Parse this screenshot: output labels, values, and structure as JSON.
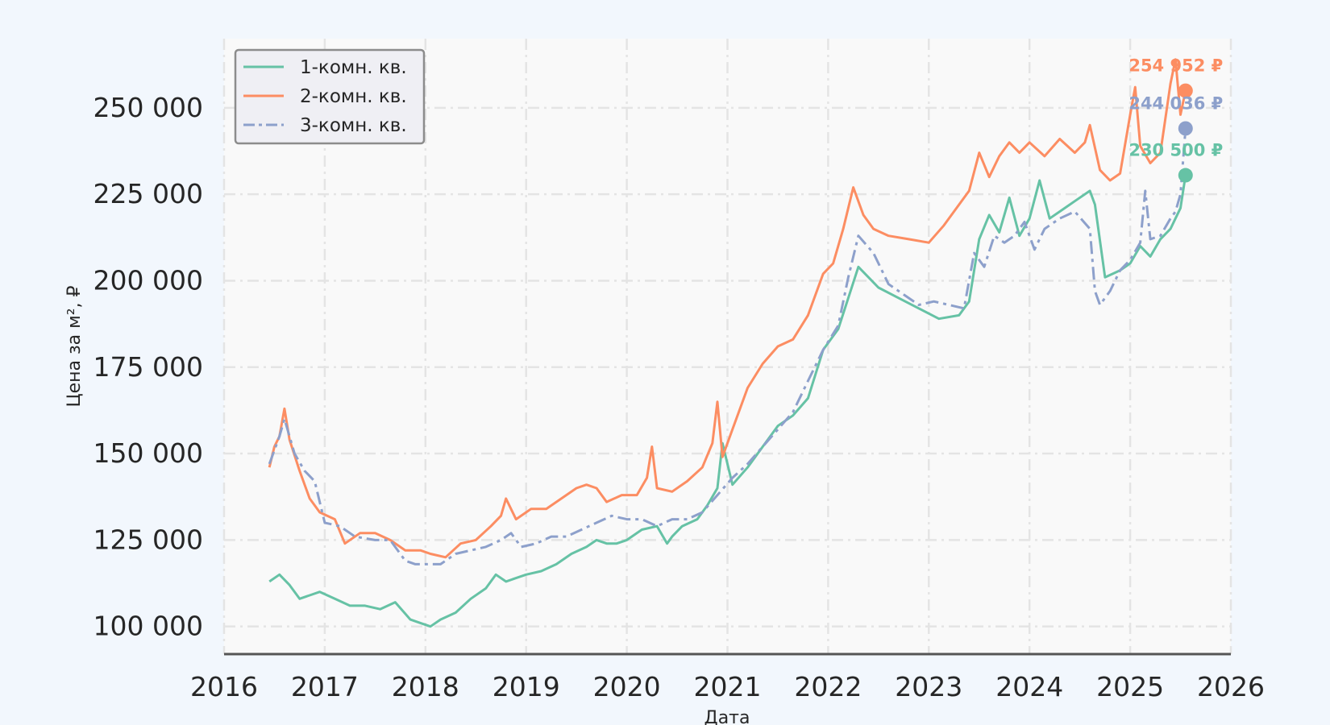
{
  "chart_data": {
    "type": "line",
    "title": "",
    "xlabel": "Дата",
    "ylabel": "Цена за м², ₽",
    "xlim": [
      2016,
      2026
    ],
    "ylim": [
      92000,
      270000
    ],
    "x_ticks": [
      2016,
      2017,
      2018,
      2019,
      2020,
      2021,
      2022,
      2023,
      2024,
      2025,
      2026
    ],
    "x_tick_labels": [
      "2016",
      "2017",
      "2018",
      "2019",
      "2020",
      "2021",
      "2022",
      "2023",
      "2024",
      "2025",
      "2026"
    ],
    "y_ticks": [
      100000,
      125000,
      150000,
      175000,
      200000,
      225000,
      250000
    ],
    "y_tick_labels": [
      "100 000",
      "125 000",
      "150 000",
      "175 000",
      "200 000",
      "225 000",
      "250 000"
    ],
    "grid": true,
    "legend_position": "top-left",
    "series": [
      {
        "name": "1-комн. кв.",
        "color": "#66c2a5",
        "dash": "solid",
        "end_label": "230 500 ₽",
        "x": [
          2016.45,
          2016.55,
          2016.65,
          2016.75,
          2016.85,
          2016.95,
          2017.1,
          2017.25,
          2017.4,
          2017.55,
          2017.7,
          2017.85,
          2017.95,
          2018.05,
          2018.15,
          2018.3,
          2018.45,
          2018.6,
          2018.7,
          2018.8,
          2018.9,
          2019.0,
          2019.15,
          2019.3,
          2019.45,
          2019.6,
          2019.7,
          2019.8,
          2019.9,
          2020.0,
          2020.15,
          2020.3,
          2020.4,
          2020.45,
          2020.55,
          2020.7,
          2020.8,
          2020.9,
          2020.95,
          2021.05,
          2021.2,
          2021.35,
          2021.5,
          2021.65,
          2021.8,
          2021.95,
          2022.1,
          2022.2,
          2022.3,
          2022.4,
          2022.5,
          2022.7,
          2022.9,
          2023.1,
          2023.3,
          2023.4,
          2023.5,
          2023.6,
          2023.7,
          2023.8,
          2023.9,
          2024.0,
          2024.1,
          2024.2,
          2024.3,
          2024.45,
          2024.6,
          2024.65,
          2024.75,
          2024.9,
          2025.0,
          2025.1,
          2025.2,
          2025.3,
          2025.4,
          2025.45,
          2025.5,
          2025.55
        ],
        "y": [
          113000,
          115000,
          112000,
          108000,
          109000,
          110000,
          108000,
          106000,
          106000,
          105000,
          107000,
          102000,
          101000,
          100000,
          102000,
          104000,
          108000,
          111000,
          115000,
          113000,
          114000,
          115000,
          116000,
          118000,
          121000,
          123000,
          125000,
          124000,
          124000,
          125000,
          128000,
          129000,
          124000,
          126000,
          129000,
          131000,
          135000,
          140000,
          153000,
          141000,
          146000,
          152000,
          158000,
          161000,
          166000,
          180000,
          186000,
          195000,
          204000,
          201000,
          198000,
          195000,
          192000,
          189000,
          190000,
          194000,
          212000,
          219000,
          214000,
          224000,
          213000,
          218000,
          229000,
          218000,
          220000,
          223000,
          226000,
          222000,
          201000,
          203000,
          205000,
          210000,
          207000,
          212000,
          215000,
          218000,
          221000,
          230500
        ]
      },
      {
        "name": "2-комн. кв.",
        "color": "#fc8d62",
        "dash": "solid",
        "end_label": "254 952 ₽",
        "x": [
          2016.45,
          2016.5,
          2016.55,
          2016.6,
          2016.65,
          2016.75,
          2016.85,
          2016.95,
          2017.1,
          2017.2,
          2017.35,
          2017.5,
          2017.65,
          2017.8,
          2017.95,
          2018.05,
          2018.2,
          2018.35,
          2018.5,
          2018.65,
          2018.75,
          2018.8,
          2018.9,
          2019.05,
          2019.2,
          2019.35,
          2019.5,
          2019.6,
          2019.7,
          2019.8,
          2019.95,
          2020.1,
          2020.2,
          2020.25,
          2020.3,
          2020.45,
          2020.6,
          2020.75,
          2020.85,
          2020.9,
          2020.95,
          2021.05,
          2021.2,
          2021.35,
          2021.5,
          2021.65,
          2021.8,
          2021.95,
          2022.05,
          2022.15,
          2022.25,
          2022.35,
          2022.45,
          2022.6,
          2022.8,
          2023.0,
          2023.15,
          2023.3,
          2023.4,
          2023.5,
          2023.6,
          2023.7,
          2023.8,
          2023.9,
          2024.0,
          2024.15,
          2024.3,
          2024.45,
          2024.55,
          2024.6,
          2024.7,
          2024.8,
          2024.9,
          2025.0,
          2025.05,
          2025.1,
          2025.2,
          2025.3,
          2025.4,
          2025.45,
          2025.5,
          2025.55
        ],
        "y": [
          146000,
          152000,
          155000,
          163000,
          154000,
          145000,
          137000,
          133000,
          131000,
          124000,
          127000,
          127000,
          125000,
          122000,
          122000,
          121000,
          120000,
          124000,
          125000,
          129000,
          132000,
          137000,
          131000,
          134000,
          134000,
          137000,
          140000,
          141000,
          140000,
          136000,
          138000,
          138000,
          143000,
          152000,
          140000,
          139000,
          142000,
          146000,
          153000,
          165000,
          149000,
          157000,
          169000,
          176000,
          181000,
          183000,
          190000,
          202000,
          205000,
          215000,
          227000,
          219000,
          215000,
          213000,
          212000,
          211000,
          216000,
          222000,
          226000,
          237000,
          230000,
          236000,
          240000,
          237000,
          240000,
          236000,
          241000,
          237000,
          240000,
          245000,
          232000,
          229000,
          231000,
          248000,
          256000,
          239000,
          234000,
          237000,
          257000,
          264000,
          248000,
          254952
        ]
      },
      {
        "name": "3-комн. кв.",
        "color": "#8da0cb",
        "dash": "dashdot",
        "end_label": "244 036 ₽",
        "x": [
          2016.45,
          2016.55,
          2016.6,
          2016.7,
          2016.8,
          2016.9,
          2017.0,
          2017.15,
          2017.3,
          2017.5,
          2017.65,
          2017.8,
          2017.9,
          2018.0,
          2018.15,
          2018.3,
          2018.45,
          2018.6,
          2018.75,
          2018.85,
          2018.95,
          2019.1,
          2019.25,
          2019.4,
          2019.55,
          2019.7,
          2019.85,
          2020.0,
          2020.15,
          2020.3,
          2020.45,
          2020.6,
          2020.75,
          2020.9,
          2021.05,
          2021.2,
          2021.35,
          2021.5,
          2021.65,
          2021.8,
          2021.95,
          2022.1,
          2022.2,
          2022.3,
          2022.45,
          2022.6,
          2022.75,
          2022.9,
          2023.05,
          2023.2,
          2023.35,
          2023.45,
          2023.55,
          2023.65,
          2023.75,
          2023.85,
          2023.95,
          2024.05,
          2024.15,
          2024.3,
          2024.45,
          2024.6,
          2024.65,
          2024.7,
          2024.8,
          2024.9,
          2025.0,
          2025.1,
          2025.15,
          2025.2,
          2025.3,
          2025.4,
          2025.45,
          2025.5,
          2025.55
        ],
        "y": [
          147000,
          155000,
          160000,
          150000,
          145000,
          142000,
          130000,
          129000,
          126000,
          125000,
          125000,
          119000,
          118000,
          118000,
          118000,
          121000,
          122000,
          123000,
          125000,
          127000,
          123000,
          124000,
          126000,
          126000,
          128000,
          130000,
          132000,
          131000,
          131000,
          129000,
          131000,
          131000,
          133000,
          138000,
          143000,
          147000,
          152000,
          157000,
          162000,
          171000,
          180000,
          187000,
          201000,
          213000,
          208000,
          199000,
          196000,
          193000,
          194000,
          193000,
          192000,
          208000,
          204000,
          213000,
          211000,
          213000,
          217000,
          209000,
          215000,
          218000,
          220000,
          215000,
          197000,
          193000,
          197000,
          203000,
          206000,
          211000,
          226000,
          212000,
          213000,
          218000,
          220000,
          225000,
          244036
        ]
      }
    ]
  }
}
